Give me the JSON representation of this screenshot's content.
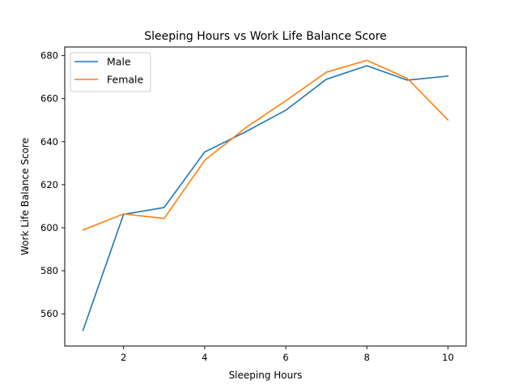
{
  "chart_data": {
    "type": "line",
    "title": "Sleeping Hours vs  Work Life Balance Score",
    "xlabel": "Sleeping Hours",
    "ylabel": "Work Life Balance Score",
    "x": [
      1,
      2,
      3,
      4,
      5,
      6,
      7,
      8,
      9,
      10
    ],
    "xlim": [
      0.55,
      10.45
    ],
    "ylim": [
      545,
      684
    ],
    "xticks": [
      2,
      4,
      6,
      8,
      10
    ],
    "yticks": [
      560,
      580,
      600,
      620,
      640,
      660,
      680
    ],
    "grid": false,
    "legend_position": "top-left",
    "series": [
      {
        "name": "Male",
        "color": "#1f77b4",
        "values": [
          552.3,
          606.2,
          609.4,
          635.2,
          644.5,
          654.6,
          669.0,
          675.3,
          668.6,
          670.5
        ]
      },
      {
        "name": "Female",
        "color": "#ff7f0e",
        "values": [
          598.9,
          606.4,
          604.3,
          631.3,
          646.3,
          659.0,
          672.3,
          677.8,
          669.4,
          650.1
        ]
      }
    ]
  }
}
